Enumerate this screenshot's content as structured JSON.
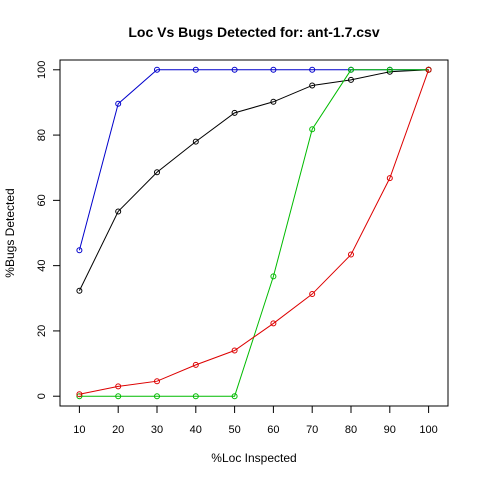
{
  "chart_data": {
    "type": "line",
    "title": "Loc Vs Bugs Detected for: ant-1.7.csv",
    "xlabel": "%Loc Inspected",
    "ylabel": "%Bugs Detected",
    "x": [
      10,
      20,
      30,
      40,
      50,
      60,
      70,
      80,
      90,
      100
    ],
    "xlim": [
      5,
      105
    ],
    "ylim": [
      -3,
      103
    ],
    "xticks": [
      10,
      20,
      30,
      40,
      50,
      60,
      70,
      80,
      90,
      100
    ],
    "yticks": [
      0,
      20,
      40,
      60,
      80,
      100
    ],
    "grid": false,
    "series": [
      {
        "color": "#0000cc",
        "values": [
          44.7,
          89.6,
          100,
          100,
          100,
          100,
          100,
          100,
          100,
          100
        ]
      },
      {
        "color": "#000000",
        "values": [
          32.3,
          56.6,
          68.6,
          78.0,
          86.8,
          90.2,
          95.2,
          96.9,
          99.4,
          100
        ]
      },
      {
        "color": "#00bb00",
        "values": [
          0,
          0,
          0,
          0,
          0,
          36.7,
          81.8,
          100,
          100,
          100
        ]
      },
      {
        "color": "#dd0000",
        "values": [
          0.6,
          3.0,
          4.6,
          9.6,
          14.0,
          22.3,
          31.3,
          43.4,
          66.8,
          100
        ]
      }
    ]
  }
}
